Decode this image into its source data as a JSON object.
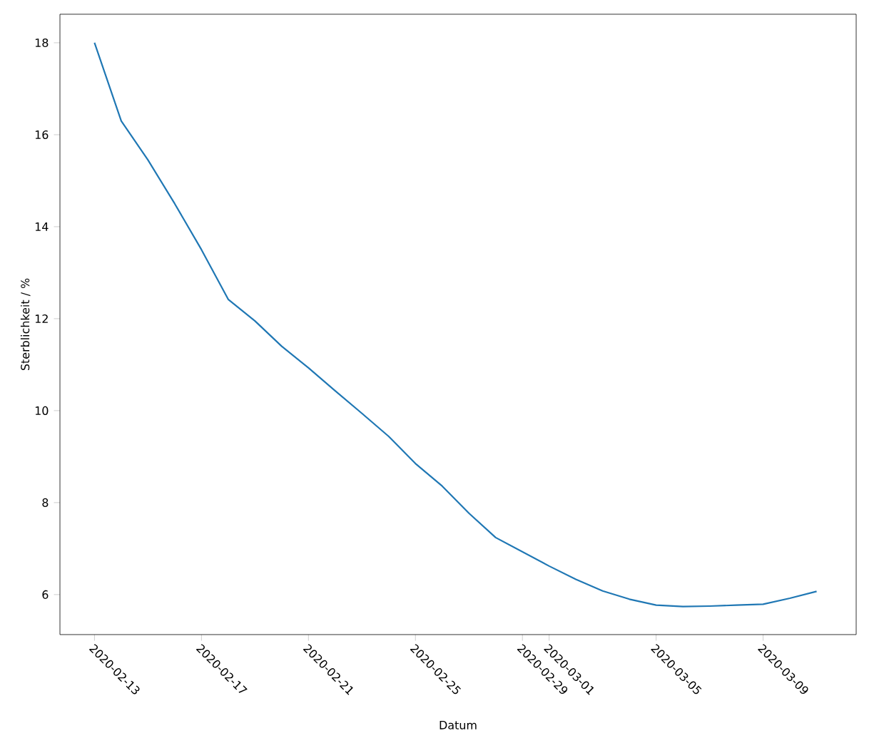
{
  "chart_data": {
    "type": "line",
    "xlabel": "Datum",
    "ylabel": "Sterblichkeit / %",
    "x": [
      "2020-02-13",
      "2020-02-14",
      "2020-02-15",
      "2020-02-16",
      "2020-02-17",
      "2020-02-18",
      "2020-02-19",
      "2020-02-20",
      "2020-02-21",
      "2020-02-22",
      "2020-02-23",
      "2020-02-24",
      "2020-02-25",
      "2020-02-26",
      "2020-02-27",
      "2020-02-28",
      "2020-02-29",
      "2020-03-01",
      "2020-03-02",
      "2020-03-03",
      "2020-03-04",
      "2020-03-05",
      "2020-03-06",
      "2020-03-07",
      "2020-03-08",
      "2020-03-09",
      "2020-03-10",
      "2020-03-11"
    ],
    "series": [
      {
        "color": "#1f77b4",
        "values": [
          18.0,
          16.3,
          15.45,
          14.5,
          13.5,
          12.42,
          11.95,
          11.4,
          10.93,
          10.43,
          9.94,
          9.44,
          8.85,
          8.36,
          7.77,
          7.24,
          6.93,
          6.62,
          6.33,
          6.08,
          5.9,
          5.77,
          5.74,
          5.75,
          5.77,
          5.79,
          5.92,
          6.07
        ]
      }
    ],
    "xlim": [
      "2020-02-11T17:00",
      "2020-03-12T11:30"
    ],
    "ylim": [
      5.13,
      18.62
    ],
    "xticks": [
      "2020-02-13",
      "2020-02-17",
      "2020-02-21",
      "2020-02-25",
      "2020-02-29",
      "2020-03-01",
      "2020-03-05",
      "2020-03-09"
    ],
    "yticks": [
      6,
      8,
      10,
      12,
      14,
      16,
      18
    ],
    "marker": "none",
    "line_style": "solid"
  }
}
